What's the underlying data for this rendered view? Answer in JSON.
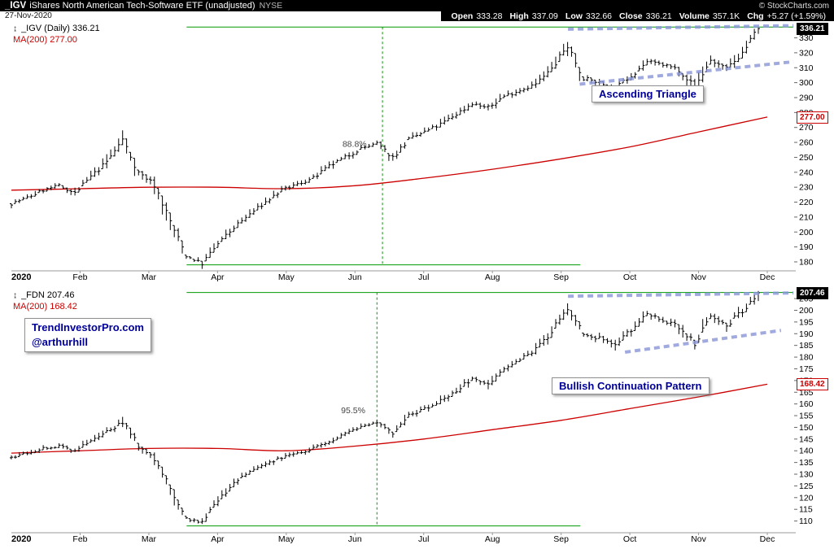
{
  "header": {
    "symbol": "_IGV",
    "title": "iShares North American Tech-Software ETF (unadjusted)",
    "exchange": "NYSE",
    "copyright": "© StockCharts.com",
    "date": "27-Nov-2020",
    "quote": {
      "open_label": "Open",
      "open": "333.28",
      "high_label": "High",
      "high": "337.09",
      "low_label": "Low",
      "low": "332.66",
      "close_label": "Close",
      "close": "336.21",
      "volume_label": "Volume",
      "volume": "357.1K",
      "chg_label": "Chg",
      "chg": "+5.27 (+1.59%)"
    }
  },
  "watermark": {
    "line1": "TrendInvestorPro.com",
    "line2": "@arthurhill"
  },
  "colors": {
    "bar_black": "#000000",
    "ma_red": "#cc0000",
    "fib_green": "#009900",
    "pattern_blue": "#8a96d6",
    "callout_text": "#000099",
    "axis_text": "#000000",
    "retrace_text": "#444444"
  },
  "chart_data": [
    {
      "type": "bar",
      "symbol": "_IGV",
      "legend_symbol": "_IGV (Daily) 336.21",
      "legend_ma": "MA(200) 277.00",
      "last_price": 336.21,
      "last_price_label": "336.21",
      "ma_price": 277.0,
      "ma_price_label": "277.00",
      "y_range": [
        174,
        339
      ],
      "y_ticks": [
        330,
        320,
        310,
        300,
        290,
        280,
        270,
        260,
        250,
        240,
        230,
        220,
        210,
        200,
        190,
        180
      ],
      "x_labels": [
        "2020",
        "Feb",
        "Mar",
        "Apr",
        "May",
        "Jun",
        "Jul",
        "Aug",
        "Sep",
        "Oct",
        "Nov",
        "Dec"
      ],
      "weeks_span_months": 10.87,
      "weekly_close": [
        219,
        223,
        228,
        231,
        226,
        237,
        247,
        262,
        240,
        232,
        207,
        184,
        179,
        192,
        203,
        212,
        220,
        228,
        232,
        236,
        244,
        250,
        256,
        259,
        250,
        262,
        267,
        272,
        279,
        286,
        283,
        291,
        295,
        299,
        309,
        325,
        303,
        300,
        296,
        305,
        314,
        312,
        309,
        297,
        315,
        309,
        320,
        336.21
      ],
      "ma200_monthly": [
        228,
        229,
        230,
        230,
        229,
        231,
        236,
        242,
        249,
        257,
        267,
        277
      ],
      "fib": {
        "label": "88.8%",
        "label_m": 5.17,
        "label_price": 257,
        "upper_price": 337.2,
        "lower_price": 178.0,
        "start_m": 2.55,
        "upper_end_m": 11.38,
        "lower_end_m": 8.28,
        "vline_m": 5.4
      },
      "pattern": {
        "label": "Ascending Triangle",
        "lines": [
          {
            "m1": 8.1,
            "p1": 335.8,
            "m2": 11.38,
            "p2": 338.2
          },
          {
            "m1": 8.27,
            "p1": 299.0,
            "m2": 11.38,
            "p2": 314.0
          }
        ]
      }
    },
    {
      "type": "bar",
      "symbol": "_FDN",
      "legend_symbol": "_FDN 207.46",
      "legend_ma": "MA(200) 168.42",
      "last_price": 207.46,
      "last_price_label": "207.46",
      "ma_price": 168.42,
      "ma_price_label": "168.42",
      "y_range": [
        105,
        209.2
      ],
      "y_ticks": [
        205,
        200,
        195,
        190,
        185,
        180,
        175,
        170,
        165,
        160,
        155,
        150,
        145,
        140,
        135,
        130,
        125,
        120,
        115,
        110
      ],
      "x_labels": [
        "2020",
        "Feb",
        "Mar",
        "Apr",
        "May",
        "Jun",
        "Jul",
        "Aug",
        "Sep",
        "Oct",
        "Nov",
        "Dec"
      ],
      "weeks_span_months": 10.87,
      "weekly_close": [
        137,
        139,
        141,
        142,
        140,
        144,
        148,
        152,
        142,
        137,
        124,
        111,
        109,
        119,
        126,
        131,
        134,
        137,
        139,
        141,
        144,
        147,
        150,
        152,
        148,
        155,
        158,
        161,
        166,
        171,
        169,
        175,
        179,
        183,
        191,
        201,
        190,
        188,
        185,
        192,
        198,
        196,
        193,
        186,
        198,
        193,
        200,
        207.46
      ],
      "ma200_monthly": [
        139,
        140,
        141,
        141,
        140,
        142,
        145,
        149,
        153,
        158,
        163,
        168.42
      ],
      "fib": {
        "label": "95.5%",
        "label_m": 5.15,
        "label_price": 156,
        "upper_price": 207.6,
        "lower_price": 107.9,
        "start_m": 2.55,
        "upper_end_m": 11.38,
        "lower_end_m": 8.28,
        "vline_m": 5.32
      },
      "pattern": {
        "label": "Bullish Continuation Pattern",
        "lines": [
          {
            "m1": 8.1,
            "p1": 206.0,
            "m2": 11.38,
            "p2": 207.4
          },
          {
            "m1": 8.93,
            "p1": 182.1,
            "m2": 11.2,
            "p2": 191.4
          }
        ]
      }
    }
  ]
}
